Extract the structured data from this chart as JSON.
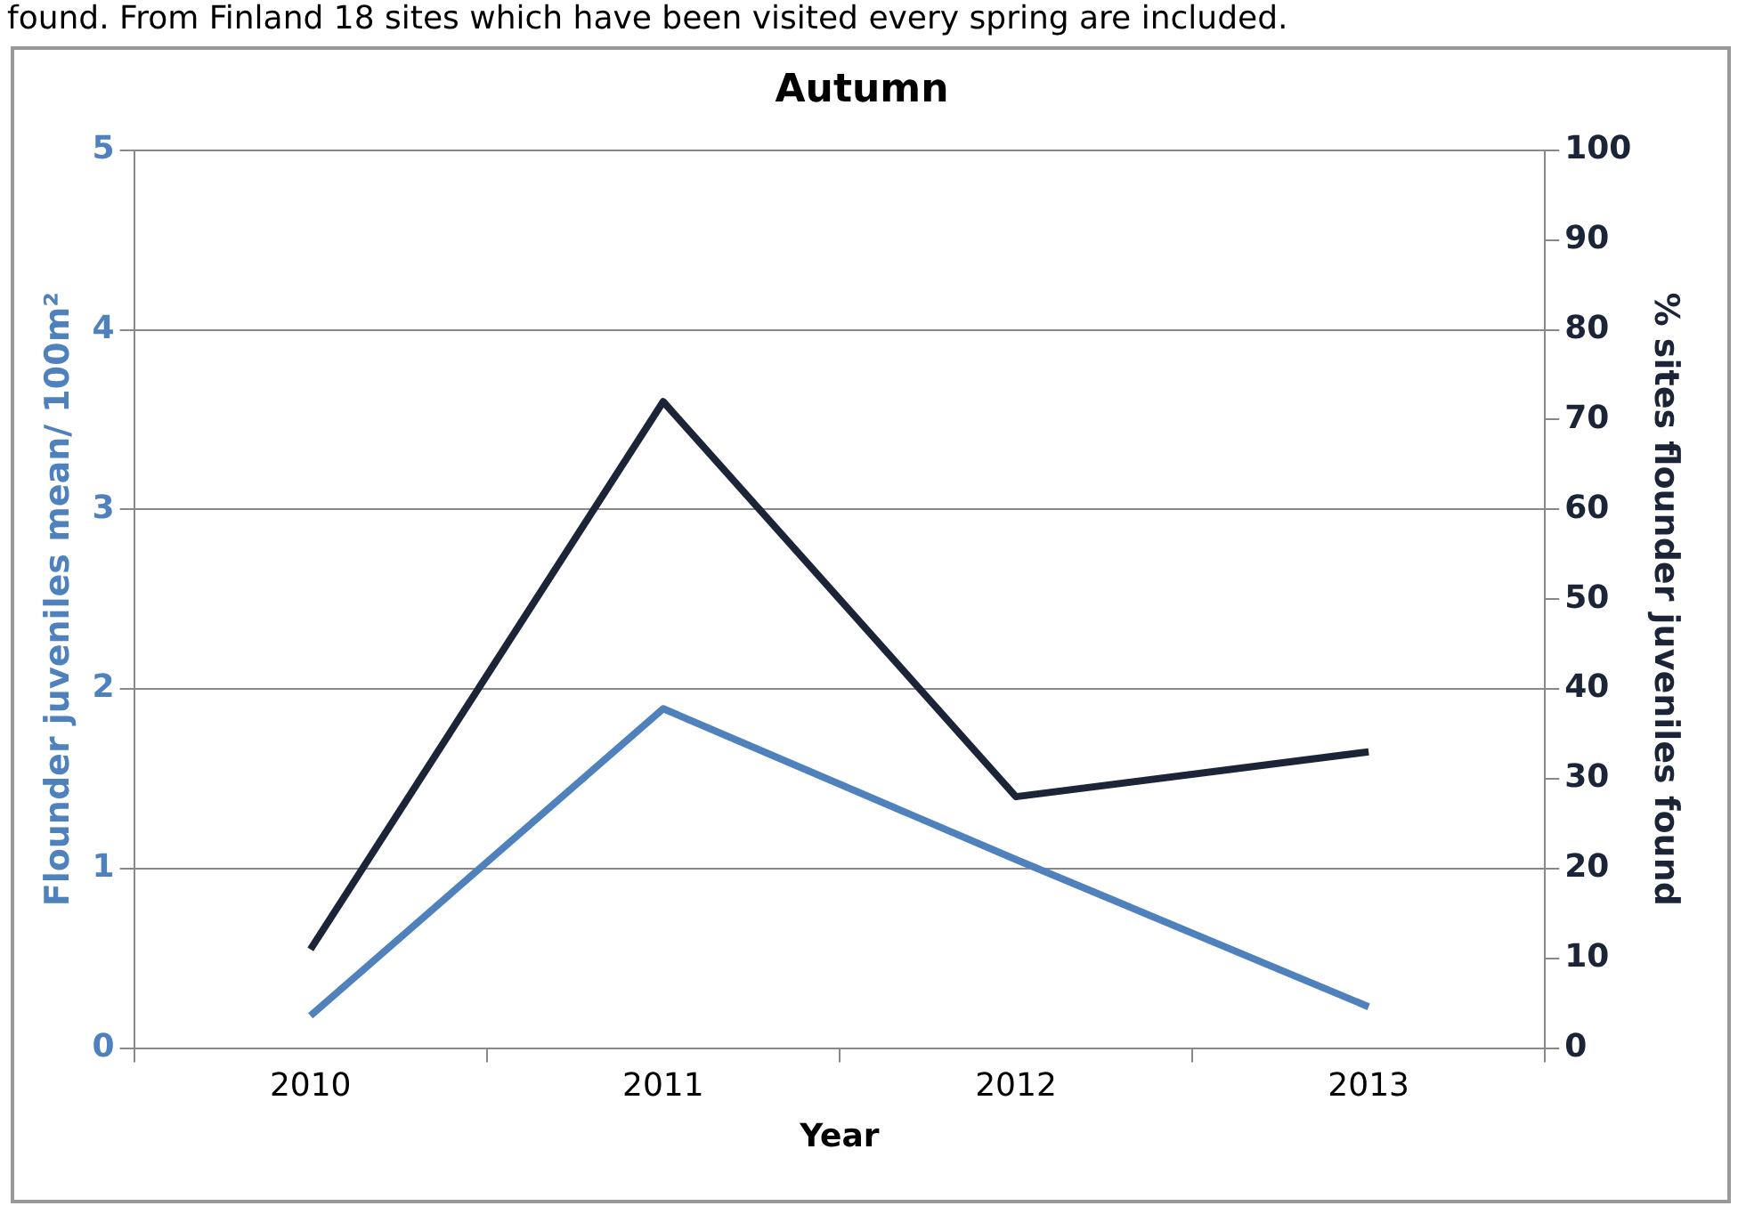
{
  "chart_data": {
    "type": "line",
    "title": "Autumn",
    "xlabel": "Year",
    "ylabel": "Flounder juveniles mean/ 100m²",
    "y2label": "% sites flounder juveniles found",
    "categories": [
      "2010",
      "2011",
      "2012",
      "2013"
    ],
    "series": [
      {
        "color": "#4f81bd",
        "values": [
          0.18,
          1.89,
          1.05,
          0.23
        ]
      },
      {
        "color": "#1c2537",
        "values": [
          11,
          72,
          28,
          33
        ],
        "axis": "y2"
      }
    ],
    "ylim": [
      0,
      5
    ],
    "yticks": [
      0,
      1,
      2,
      3,
      4,
      5
    ],
    "y2lim": [
      0,
      100
    ],
    "y2ticks": [
      0,
      10,
      20,
      30,
      40,
      50,
      60,
      70,
      80,
      90,
      100
    ],
    "grid": "y",
    "legend": false,
    "marker": "none",
    "annotations": [
      "found. From Finland 18 sites which have been visited every spring are included."
    ]
  }
}
